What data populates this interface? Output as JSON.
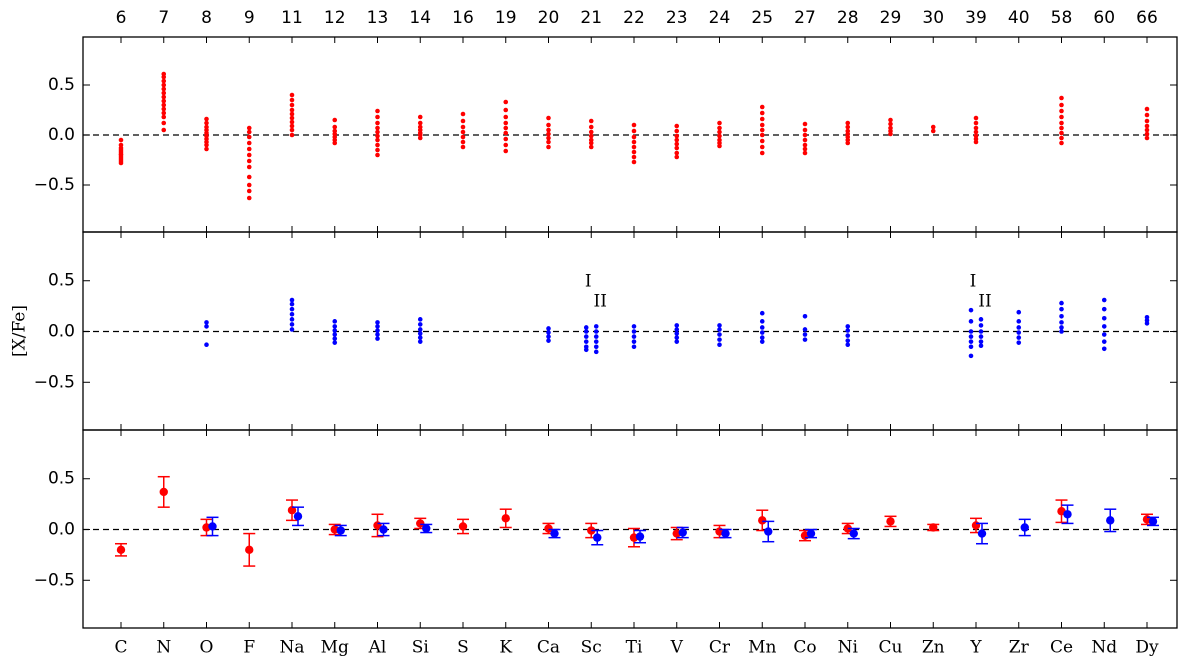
{
  "chart_data": [
    {
      "type": "strip",
      "color": "#ff0000",
      "ylim": [
        -0.97,
        0.98
      ],
      "yticks": [
        {
          "value": -0.5,
          "label": "−0.5"
        },
        {
          "value": 0,
          "label": "0.0"
        },
        0.5
      ],
      "hline": 0,
      "top_labels": [
        "6",
        "7",
        "8",
        "9",
        "11",
        "12",
        "13",
        "14",
        "16",
        "19",
        "20",
        "21",
        "22",
        "23",
        "24",
        "25",
        "27",
        "28",
        "29",
        "30",
        "39",
        "40",
        "58",
        "60",
        "66"
      ],
      "values": [
        [
          -0.05,
          -0.1,
          -0.13,
          -0.15,
          -0.17,
          -0.19,
          -0.2,
          -0.22,
          -0.24,
          -0.26,
          -0.28
        ],
        [
          0.05,
          0.12,
          0.18,
          0.22,
          0.26,
          0.3,
          0.34,
          0.38,
          0.42,
          0.46,
          0.5,
          0.54,
          0.58,
          0.61
        ],
        [
          0.16,
          0.12,
          0.08,
          0.05,
          0.02,
          -0.01,
          -0.04,
          -0.07,
          -0.1,
          -0.14
        ],
        [
          0.07,
          0.03,
          -0.02,
          -0.08,
          -0.14,
          -0.2,
          -0.26,
          -0.32,
          -0.42,
          -0.5,
          -0.56,
          -0.63
        ],
        [
          0.0,
          0.05,
          0.09,
          0.13,
          0.17,
          0.21,
          0.25,
          0.3,
          0.35,
          0.4
        ],
        [
          0.15,
          0.08,
          0.04,
          0.01,
          -0.02,
          -0.05,
          -0.08
        ],
        [
          0.24,
          0.18,
          0.12,
          0.07,
          0.03,
          -0.01,
          -0.05,
          -0.1,
          -0.15,
          -0.2
        ],
        [
          0.18,
          0.12,
          0.08,
          0.05,
          0.02,
          0.0,
          -0.03
        ],
        [
          0.21,
          0.14,
          0.08,
          0.03,
          -0.02,
          -0.07,
          -0.12
        ],
        [
          0.33,
          0.25,
          0.18,
          0.12,
          0.07,
          0.02,
          -0.04,
          -0.1,
          -0.16
        ],
        [
          0.17,
          0.1,
          0.05,
          0.01,
          -0.03,
          -0.07,
          -0.12
        ],
        [
          0.14,
          0.08,
          0.03,
          -0.01,
          -0.05,
          -0.08,
          -0.12
        ],
        [
          0.1,
          0.04,
          -0.02,
          -0.07,
          -0.12,
          -0.17,
          -0.22,
          -0.27
        ],
        [
          0.09,
          0.04,
          -0.01,
          -0.05,
          -0.09,
          -0.13,
          -0.18,
          -0.22
        ],
        [
          0.12,
          0.07,
          0.03,
          -0.01,
          -0.05,
          -0.08,
          -0.11
        ],
        [
          0.28,
          0.22,
          0.16,
          0.1,
          0.05,
          0.0,
          -0.06,
          -0.12,
          -0.18
        ],
        [
          0.11,
          0.05,
          0.0,
          -0.05,
          -0.1,
          -0.14,
          -0.18
        ],
        [
          0.12,
          0.08,
          0.04,
          0.01,
          -0.02,
          -0.05,
          -0.08
        ],
        [
          0.15,
          0.11,
          0.07,
          0.04,
          0.01
        ],
        [
          0.08,
          0.04
        ],
        [
          0.17,
          0.12,
          0.07,
          0.03,
          -0.01,
          -0.04,
          -0.07
        ],
        null,
        [
          0.37,
          0.3,
          0.24,
          0.18,
          0.12,
          0.07,
          0.02,
          -0.03,
          -0.08
        ],
        null,
        [
          0.26,
          0.2,
          0.14,
          0.09,
          0.05,
          0.01,
          -0.03
        ]
      ]
    },
    {
      "type": "strip",
      "color": "#0000ff",
      "ylim": [
        -0.97,
        0.98
      ],
      "ylabel": "[X/Fe]",
      "yticks": [
        {
          "value": -0.5,
          "label": "−0.5"
        },
        {
          "value": 0,
          "label": "0.0"
        },
        0.5
      ],
      "hline": 0,
      "ion_labels": [
        "I",
        "II"
      ],
      "values": [
        null,
        null,
        [
          0.09,
          0.05,
          -0.13
        ],
        null,
        [
          0.31,
          0.27,
          0.22,
          0.17,
          0.12,
          0.07,
          0.02
        ],
        [
          0.1,
          0.05,
          0.01,
          -0.03,
          -0.07,
          -0.11
        ],
        [
          0.09,
          0.05,
          0.01,
          -0.03,
          -0.07
        ],
        [
          0.12,
          0.07,
          0.02,
          -0.02,
          -0.06,
          -0.1
        ],
        null,
        null,
        [
          0.03,
          -0.01,
          -0.05,
          -0.09
        ],
        [
          [
            0.04,
            0.0,
            -0.05,
            -0.1,
            -0.15,
            -0.18
          ],
          [
            0.05,
            0.0,
            -0.05,
            -0.1,
            -0.15,
            -0.2
          ]
        ],
        [
          0.05,
          0.0,
          -0.05,
          -0.1,
          -0.15
        ],
        [
          0.06,
          0.02,
          -0.02,
          -0.06,
          -0.1
        ],
        [
          0.06,
          0.02,
          -0.03,
          -0.08,
          -0.13
        ],
        [
          0.18,
          0.1,
          0.04,
          -0.01,
          -0.06,
          -0.1
        ],
        [
          0.15,
          0.02,
          -0.03,
          -0.08
        ],
        [
          0.05,
          0.01,
          -0.04,
          -0.09,
          -0.13
        ],
        null,
        null,
        [
          [
            0.21,
            0.1,
            0.0,
            -0.05,
            -0.1,
            -0.15,
            -0.24
          ],
          [
            0.12,
            0.06,
            0.0,
            -0.05,
            -0.1,
            -0.14
          ]
        ],
        [
          0.19,
          0.1,
          0.04,
          -0.01,
          -0.06,
          -0.11
        ],
        [
          0.28,
          0.22,
          0.15,
          0.09,
          0.04,
          0.0
        ],
        [
          0.31,
          0.22,
          0.13,
          0.05,
          -0.03,
          -0.1,
          -0.17
        ],
        [
          0.14,
          0.11,
          0.08
        ]
      ]
    },
    {
      "type": "errorbar",
      "ylim": [
        -0.97,
        0.98
      ],
      "yticks": [
        {
          "value": -0.5,
          "label": "−0.5"
        },
        {
          "value": 0,
          "label": "0.0"
        },
        0.5
      ],
      "hline": 0,
      "categories": [
        "C",
        "N",
        "O",
        "F",
        "Na",
        "Mg",
        "Al",
        "Si",
        "S",
        "K",
        "Ca",
        "Sc",
        "Ti",
        "V",
        "Cr",
        "Mn",
        "Co",
        "Ni",
        "Cu",
        "Zn",
        "Y",
        "Zr",
        "Ce",
        "Nd",
        "Dy"
      ],
      "series": [
        {
          "color": "#ff0000",
          "values": [
            -0.2,
            0.37,
            0.02,
            -0.2,
            0.19,
            0.0,
            0.04,
            0.06,
            0.03,
            0.11,
            0.01,
            -0.01,
            -0.08,
            -0.04,
            -0.02,
            0.09,
            -0.06,
            0.01,
            0.08,
            0.02,
            0.04,
            null,
            0.18,
            null,
            0.1
          ],
          "errors": [
            0.06,
            0.15,
            0.08,
            0.16,
            0.1,
            0.05,
            0.11,
            0.05,
            0.07,
            0.09,
            0.05,
            0.07,
            0.09,
            0.06,
            0.06,
            0.1,
            0.05,
            0.05,
            0.05,
            0.03,
            0.07,
            null,
            0.11,
            null,
            0.05
          ]
        },
        {
          "color": "#0000ff",
          "values": [
            null,
            null,
            0.03,
            null,
            0.13,
            -0.01,
            0.0,
            0.01,
            null,
            null,
            -0.04,
            -0.08,
            -0.07,
            -0.03,
            -0.04,
            -0.02,
            -0.04,
            -0.04,
            null,
            null,
            -0.04,
            0.02,
            0.15,
            0.09,
            0.08
          ],
          "errors": [
            null,
            null,
            0.09,
            null,
            0.09,
            0.05,
            0.06,
            0.04,
            null,
            null,
            0.04,
            0.07,
            0.06,
            0.05,
            0.04,
            0.1,
            0.04,
            0.05,
            null,
            null,
            0.1,
            0.08,
            0.09,
            0.11,
            0.04
          ]
        }
      ]
    }
  ]
}
